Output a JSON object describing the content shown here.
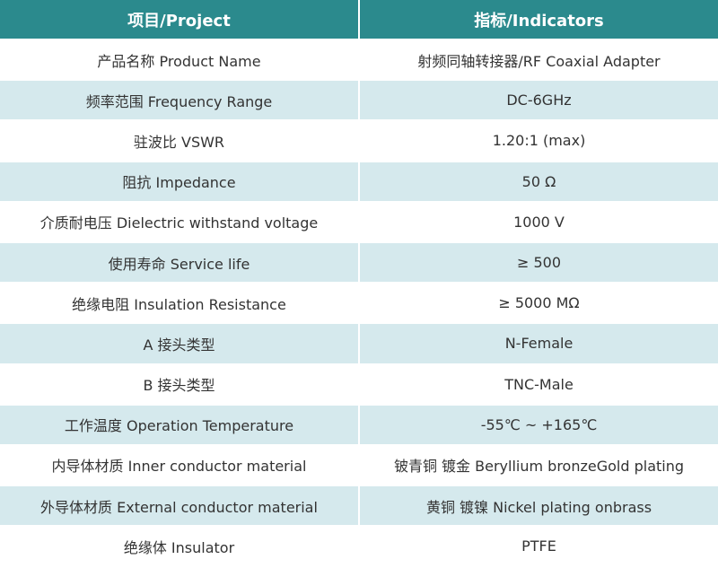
{
  "table": {
    "header": [
      "项目/Project",
      "指标/Indicators"
    ],
    "rows": [
      [
        "产品名称 Product Name",
        "射频同轴转接器/RF Coaxial Adapter"
      ],
      [
        "频率范围 Frequency Range",
        "DC-6GHz"
      ],
      [
        "驻波比 VSWR",
        "1.20:1 (max)"
      ],
      [
        "阻抗 Impedance",
        "50 Ω"
      ],
      [
        "介质耐电压 Dielectric withstand voltage",
        "1000 V"
      ],
      [
        "使用寿命 Service life",
        "≥ 500"
      ],
      [
        "绝缘电阻 Insulation Resistance",
        "≥ 5000 MΩ"
      ],
      [
        "A 接头类型",
        "N-Female"
      ],
      [
        "B 接头类型",
        "TNC-Male"
      ],
      [
        "工作温度 Operation Temperature",
        "-55℃ ~ +165℃"
      ],
      [
        "内导体材质 Inner conductor material",
        "铍青铜 镀金 Beryllium bronzeGold plating"
      ],
      [
        "外导体材质 External conductor material",
        "黄铜 镀镍 Nickel plating onbrass"
      ],
      [
        "绝缘体 Insulator",
        "PTFE"
      ]
    ]
  }
}
